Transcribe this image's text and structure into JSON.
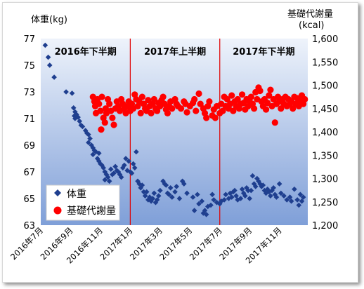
{
  "chart_data": {
    "type": "scatter",
    "y_left_label": "体重(kg)",
    "y_right_label_line1": "基礎代謝量",
    "y_right_label_line2": "(kcal)",
    "y_left_ticks": [
      "63",
      "65",
      "67",
      "69",
      "71",
      "73",
      "75",
      "77"
    ],
    "y_left_range": [
      63,
      77
    ],
    "y_right_ticks": [
      "1,200",
      "1,250",
      "1,300",
      "1,350",
      "1,400",
      "1,450",
      "1,500",
      "1,550",
      "1,600"
    ],
    "y_right_range": [
      1200,
      1600
    ],
    "x_ticks": [
      "2016年7月",
      "2016年9月",
      "2016年11月",
      "2017年1月",
      "2017年3月",
      "2017年5月",
      "2017年7月",
      "2017年9月",
      "2017年11月"
    ],
    "x_range_months": [
      0,
      17.9
    ],
    "periods": [
      {
        "label": "2016年下半期",
        "start": 0,
        "end": 6
      },
      {
        "label": "2017年上半期",
        "start": 6,
        "end": 12
      },
      {
        "label": "2017年下半期",
        "start": 12,
        "end": 17.9
      }
    ],
    "dividers": [
      6,
      12
    ],
    "legend": {
      "position": "bottom-left",
      "entries": [
        "体重",
        "基礎代謝量"
      ]
    },
    "colors": {
      "weight": "#1f3f8f",
      "bmr": "#ff0000",
      "divider": "#e00000",
      "bg_top": "#eef3fb",
      "bg_bottom": "#7f9fd8"
    },
    "series": [
      {
        "name": "体重",
        "marker": "diamond",
        "points": [
          [
            0.3,
            76.5
          ],
          [
            0.5,
            75.6
          ],
          [
            0.6,
            75
          ],
          [
            0.9,
            74.1
          ],
          [
            1.7,
            73
          ],
          [
            2.1,
            72.9
          ],
          [
            2.2,
            71.8
          ],
          [
            2.3,
            71.5
          ],
          [
            2.25,
            71.2
          ],
          [
            2.3,
            71
          ],
          [
            2.4,
            71.3
          ],
          [
            2.5,
            71.1
          ],
          [
            2.6,
            70.8
          ],
          [
            2.7,
            70.5
          ],
          [
            2.8,
            70.4
          ],
          [
            3.0,
            70.1
          ],
          [
            3.1,
            69.9
          ],
          [
            3.2,
            69.8
          ],
          [
            3.3,
            69.5
          ],
          [
            3.2,
            69.2
          ],
          [
            3.4,
            69.0
          ],
          [
            3.5,
            68.8
          ],
          [
            3.6,
            68.6
          ],
          [
            3.7,
            68.5
          ],
          [
            3.5,
            68.3
          ],
          [
            3.8,
            68.0
          ],
          [
            3.9,
            67.8
          ],
          [
            4.0,
            67.6
          ],
          [
            4.1,
            67.5
          ],
          [
            4.2,
            67.3
          ],
          [
            3.9,
            68.4
          ],
          [
            4.3,
            67.0
          ],
          [
            4.4,
            66.8
          ],
          [
            4.5,
            66.6
          ],
          [
            4.3,
            66.4
          ],
          [
            4.6,
            66.3
          ],
          [
            4.7,
            67.2
          ],
          [
            4.8,
            66.8
          ],
          [
            4.9,
            66.9
          ],
          [
            5.0,
            67.4
          ],
          [
            5.1,
            67.1
          ],
          [
            5.2,
            67.0
          ],
          [
            5.3,
            66.8
          ],
          [
            5.4,
            66.6
          ],
          [
            5.5,
            67.3
          ],
          [
            5.6,
            67.5
          ],
          [
            5.7,
            68.0
          ],
          [
            5.8,
            67.1
          ],
          [
            5.9,
            67.8
          ],
          [
            6.0,
            67.0
          ],
          [
            6.1,
            66.9
          ],
          [
            6.2,
            67.6
          ],
          [
            6.3,
            67.3
          ],
          [
            6.4,
            68.5
          ],
          [
            6.5,
            66.3
          ],
          [
            6.6,
            66.1
          ],
          [
            6.7,
            65.8
          ],
          [
            6.8,
            66.0
          ],
          [
            6.9,
            65.5
          ],
          [
            7.0,
            65.2
          ],
          [
            7.1,
            65.5
          ],
          [
            7.2,
            64.9
          ],
          [
            7.3,
            65.1
          ],
          [
            7.4,
            64.8
          ],
          [
            7.5,
            65.0
          ],
          [
            7.6,
            65.4
          ],
          [
            7.7,
            64.7
          ],
          [
            7.8,
            64.9
          ],
          [
            7.9,
            65.2
          ],
          [
            8.0,
            65.6
          ],
          [
            8.2,
            66.3
          ],
          [
            8.3,
            66.1
          ],
          [
            8.4,
            66.0
          ],
          [
            8.5,
            65.4
          ],
          [
            8.6,
            65.3
          ],
          [
            8.7,
            65.8
          ],
          [
            8.8,
            65.1
          ],
          [
            9.0,
            65.5
          ],
          [
            9.1,
            65.9
          ],
          [
            9.3,
            65.0
          ],
          [
            9.5,
            66.3
          ],
          [
            9.6,
            66.1
          ],
          [
            9.8,
            65.4
          ],
          [
            10.2,
            65.1
          ],
          [
            10.3,
            64.1
          ],
          [
            10.5,
            65.3
          ],
          [
            10.6,
            64.6
          ],
          [
            10.8,
            64.8
          ],
          [
            10.9,
            63.9
          ],
          [
            11.0,
            64.1
          ],
          [
            11.1,
            63.8
          ],
          [
            11.2,
            64.4
          ],
          [
            11.4,
            64.5
          ],
          [
            11.5,
            65.3
          ],
          [
            11.6,
            64.9
          ],
          [
            11.8,
            64.7
          ],
          [
            12.0,
            64.6
          ],
          [
            12.1,
            64.8
          ],
          [
            12.3,
            64.9
          ],
          [
            12.4,
            65.3
          ],
          [
            12.6,
            65.0
          ],
          [
            12.7,
            65.4
          ],
          [
            12.8,
            65.1
          ],
          [
            12.9,
            65.5
          ],
          [
            13.0,
            65.6
          ],
          [
            13.1,
            65.2
          ],
          [
            13.2,
            64.9
          ],
          [
            13.4,
            65.0
          ],
          [
            13.5,
            65.7
          ],
          [
            13.6,
            65.4
          ],
          [
            13.7,
            65.2
          ],
          [
            13.8,
            65.8
          ],
          [
            13.9,
            65.6
          ],
          [
            14.0,
            65.0
          ],
          [
            14.1,
            65.6
          ],
          [
            14.2,
            66.7
          ],
          [
            14.3,
            66.1
          ],
          [
            14.4,
            65.9
          ],
          [
            14.5,
            66.5
          ],
          [
            14.6,
            66.3
          ],
          [
            14.7,
            66.1
          ],
          [
            14.8,
            65.9
          ],
          [
            14.9,
            66.0
          ],
          [
            15.0,
            65.6
          ],
          [
            15.1,
            65.4
          ],
          [
            15.2,
            65.7
          ],
          [
            15.3,
            65.5
          ],
          [
            15.4,
            65.2
          ],
          [
            15.5,
            65.6
          ],
          [
            15.6,
            65.8
          ],
          [
            15.7,
            65.3
          ],
          [
            15.8,
            65.1
          ],
          [
            16.0,
            66.1
          ],
          [
            16.1,
            65.4
          ],
          [
            16.3,
            65.2
          ],
          [
            16.5,
            64.9
          ],
          [
            16.7,
            65.1
          ],
          [
            16.8,
            64.8
          ],
          [
            17.0,
            65.7
          ],
          [
            17.2,
            64.9
          ],
          [
            17.3,
            64.5
          ],
          [
            17.4,
            65.3
          ],
          [
            17.5,
            64.8
          ],
          [
            17.6,
            65.1
          ]
        ]
      },
      {
        "name": "基礎代謝量",
        "marker": "circle",
        "points": [
          [
            3.5,
            1475
          ],
          [
            3.6,
            1465
          ],
          [
            3.65,
            1455
          ],
          [
            3.7,
            1440
          ],
          [
            3.8,
            1470
          ],
          [
            3.9,
            1460
          ],
          [
            4.0,
            1445
          ],
          [
            4.05,
            1405
          ],
          [
            4.1,
            1475
          ],
          [
            4.2,
            1430
          ],
          [
            4.3,
            1420
          ],
          [
            4.35,
            1450
          ],
          [
            4.4,
            1440
          ],
          [
            4.5,
            1470
          ],
          [
            4.6,
            1460
          ],
          [
            4.7,
            1445
          ],
          [
            4.8,
            1430
          ],
          [
            4.9,
            1415
          ],
          [
            5.0,
            1450
          ],
          [
            5.1,
            1465
          ],
          [
            5.2,
            1455
          ],
          [
            5.3,
            1445
          ],
          [
            5.4,
            1470
          ],
          [
            5.5,
            1460
          ],
          [
            5.6,
            1450
          ],
          [
            5.7,
            1440
          ],
          [
            5.8,
            1455
          ],
          [
            5.9,
            1465
          ],
          [
            6.0,
            1445
          ],
          [
            6.1,
            1460
          ],
          [
            6.2,
            1450
          ],
          [
            6.3,
            1480
          ],
          [
            6.4,
            1470
          ],
          [
            6.5,
            1455
          ],
          [
            6.6,
            1465
          ],
          [
            6.7,
            1440
          ],
          [
            6.8,
            1475
          ],
          [
            6.9,
            1460
          ],
          [
            7.0,
            1450
          ],
          [
            7.1,
            1445
          ],
          [
            7.2,
            1468
          ],
          [
            7.3,
            1455
          ],
          [
            7.4,
            1440
          ],
          [
            7.5,
            1460
          ],
          [
            7.6,
            1470
          ],
          [
            7.7,
            1450
          ],
          [
            7.8,
            1445
          ],
          [
            7.9,
            1462
          ],
          [
            8.0,
            1455
          ],
          [
            8.1,
            1468
          ],
          [
            8.2,
            1475
          ],
          [
            8.3,
            1460
          ],
          [
            8.4,
            1448
          ],
          [
            8.5,
            1440
          ],
          [
            8.6,
            1455
          ],
          [
            8.7,
            1465
          ],
          [
            8.8,
            1450
          ],
          [
            9.0,
            1470
          ],
          [
            9.1,
            1460
          ],
          [
            9.2,
            1455
          ],
          [
            9.4,
            1450
          ],
          [
            9.6,
            1465
          ],
          [
            9.7,
            1460
          ],
          [
            9.8,
            1442
          ],
          [
            10.0,
            1455
          ],
          [
            10.2,
            1462
          ],
          [
            10.3,
            1470
          ],
          [
            10.4,
            1445
          ],
          [
            10.6,
            1482
          ],
          [
            10.7,
            1460
          ],
          [
            10.9,
            1450
          ],
          [
            11.0,
            1440
          ],
          [
            11.1,
            1430
          ],
          [
            11.2,
            1455
          ],
          [
            11.3,
            1465
          ],
          [
            11.5,
            1435
          ],
          [
            11.6,
            1448
          ],
          [
            11.7,
            1430
          ],
          [
            11.8,
            1455
          ],
          [
            12.0,
            1440
          ],
          [
            12.1,
            1460
          ],
          [
            12.2,
            1445
          ],
          [
            12.3,
            1475
          ],
          [
            12.4,
            1455
          ],
          [
            12.5,
            1470
          ],
          [
            12.6,
            1450
          ],
          [
            12.7,
            1460
          ],
          [
            12.8,
            1478
          ],
          [
            12.9,
            1445
          ],
          [
            13.0,
            1465
          ],
          [
            13.1,
            1455
          ],
          [
            13.2,
            1470
          ],
          [
            13.3,
            1450
          ],
          [
            13.4,
            1460
          ],
          [
            13.5,
            1480
          ],
          [
            13.6,
            1462
          ],
          [
            13.7,
            1448
          ],
          [
            13.8,
            1470
          ],
          [
            13.9,
            1455
          ],
          [
            14.0,
            1465
          ],
          [
            14.1,
            1475
          ],
          [
            14.2,
            1460
          ],
          [
            14.3,
            1450
          ],
          [
            14.4,
            1485
          ],
          [
            14.5,
            1470
          ],
          [
            14.6,
            1495
          ],
          [
            14.7,
            1488
          ],
          [
            14.8,
            1465
          ],
          [
            14.9,
            1455
          ],
          [
            15.0,
            1470
          ],
          [
            15.1,
            1448
          ],
          [
            15.2,
            1462
          ],
          [
            15.3,
            1478
          ],
          [
            15.4,
            1490
          ],
          [
            15.5,
            1455
          ],
          [
            15.6,
            1470
          ],
          [
            15.7,
            1420
          ],
          [
            15.8,
            1460
          ],
          [
            15.9,
            1475
          ],
          [
            16.0,
            1465
          ],
          [
            16.1,
            1450
          ],
          [
            16.2,
            1470
          ],
          [
            16.3,
            1460
          ],
          [
            16.4,
            1475
          ],
          [
            16.5,
            1455
          ],
          [
            16.6,
            1470
          ],
          [
            16.7,
            1460
          ],
          [
            16.8,
            1465
          ],
          [
            16.9,
            1450
          ],
          [
            17.0,
            1475
          ],
          [
            17.1,
            1460
          ],
          [
            17.2,
            1472
          ],
          [
            17.3,
            1455
          ],
          [
            17.4,
            1465
          ],
          [
            17.5,
            1478
          ],
          [
            17.6,
            1460
          ],
          [
            17.7,
            1470
          ]
        ]
      }
    ]
  }
}
